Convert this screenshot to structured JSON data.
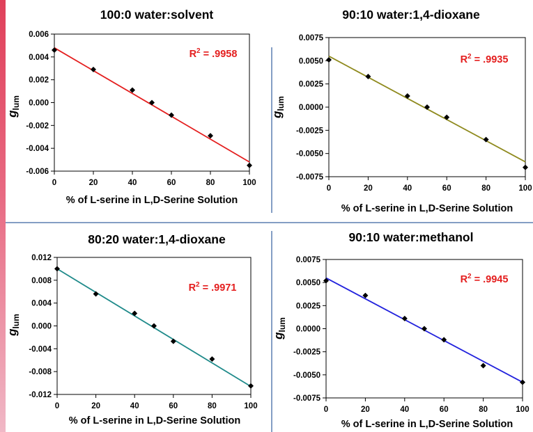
{
  "chart_data": [
    {
      "type": "scatter",
      "title": "100:0 water:solvent",
      "xlabel": "% of  L-serine in L,D-Serine Solution",
      "ylabel": "g",
      "ylabel_sub": "lum",
      "xlim": [
        0,
        100
      ],
      "ylim": [
        -0.006,
        0.006
      ],
      "xticks": [
        "0",
        "20",
        "40",
        "60",
        "80",
        "100"
      ],
      "yticks": [
        "-0.006",
        "-0.004",
        "-0.002",
        "0.000",
        "0.002",
        "0.004",
        "0.006"
      ],
      "r2_prefix": "R",
      "r2_exp": "2",
      "r2_value": " = .9958",
      "line_color": "#e41e1e",
      "x": [
        0,
        20,
        40,
        50,
        60,
        80,
        100
      ],
      "y": [
        0.0046,
        0.0029,
        0.0011,
        0.0,
        -0.0011,
        -0.0029,
        -0.0055
      ],
      "fit": {
        "x": [
          0,
          100
        ],
        "y": [
          0.0048,
          -0.0052
        ]
      }
    },
    {
      "type": "scatter",
      "title": "90:10 water:1,4-dioxane",
      "xlabel": "% of  L-serine in L,D-Serine Solution",
      "ylabel": "g",
      "ylabel_sub": "lum",
      "xlim": [
        0,
        100
      ],
      "ylim": [
        -0.0075,
        0.0075
      ],
      "xticks": [
        "0",
        "20",
        "40",
        "60",
        "80",
        "100"
      ],
      "yticks": [
        "-0.0075",
        "-0.0050",
        "-0.0025",
        "0.0000",
        "0.0025",
        "0.0050",
        "0.0075"
      ],
      "r2_prefix": "R",
      "r2_exp": "2",
      "r2_value": " = .9935",
      "line_color": "#8f8a1e",
      "x": [
        0,
        20,
        40,
        50,
        60,
        80,
        100
      ],
      "y": [
        0.0051,
        0.0033,
        0.0012,
        0.0,
        -0.0011,
        -0.0035,
        -0.0065
      ],
      "fit": {
        "x": [
          0,
          100
        ],
        "y": [
          0.0055,
          -0.0059
        ]
      }
    },
    {
      "type": "scatter",
      "title": "80:20 water:1,4-dioxane",
      "xlabel": "% of  L-serine in L,D-Serine Solution",
      "ylabel": "g",
      "ylabel_sub": "lum",
      "xlim": [
        0,
        100
      ],
      "ylim": [
        -0.012,
        0.012
      ],
      "xticks": [
        "0",
        "20",
        "40",
        "60",
        "80",
        "100"
      ],
      "yticks": [
        "-0.012",
        "-0.008",
        "-0.004",
        "0.000",
        "0.004",
        "0.008",
        "0.012"
      ],
      "r2_prefix": "R",
      "r2_exp": "2",
      "r2_value": " = .9971",
      "line_color": "#1f8a8a",
      "x": [
        0,
        20,
        40,
        50,
        60,
        80,
        100
      ],
      "y": [
        0.01,
        0.0056,
        0.0022,
        0.0,
        -0.0027,
        -0.0058,
        -0.0105
      ],
      "fit": {
        "x": [
          0,
          100
        ],
        "y": [
          0.01,
          -0.0106
        ]
      }
    },
    {
      "type": "scatter",
      "title": "90:10 water:methanol",
      "xlabel": "% of  L-serine in L,D-Serine Solution",
      "ylabel": "g",
      "ylabel_sub": "lum",
      "xlim": [
        0,
        100
      ],
      "ylim": [
        -0.0075,
        0.0075
      ],
      "xticks": [
        "0",
        "20",
        "40",
        "60",
        "80",
        "100"
      ],
      "yticks": [
        "-0.0075",
        "-0.0050",
        "-0.0025",
        "0.0000",
        "0.0025",
        "0.0050",
        "0.0075"
      ],
      "r2_prefix": "R",
      "r2_exp": "2",
      "r2_value": " = .9945",
      "line_color": "#2222dd",
      "x": [
        0,
        20,
        40,
        50,
        60,
        80,
        100
      ],
      "y": [
        0.0052,
        0.0036,
        0.0011,
        0.0,
        -0.0012,
        -0.004,
        -0.0058
      ],
      "fit": {
        "x": [
          0,
          100
        ],
        "y": [
          0.0055,
          -0.0058
        ]
      }
    }
  ]
}
